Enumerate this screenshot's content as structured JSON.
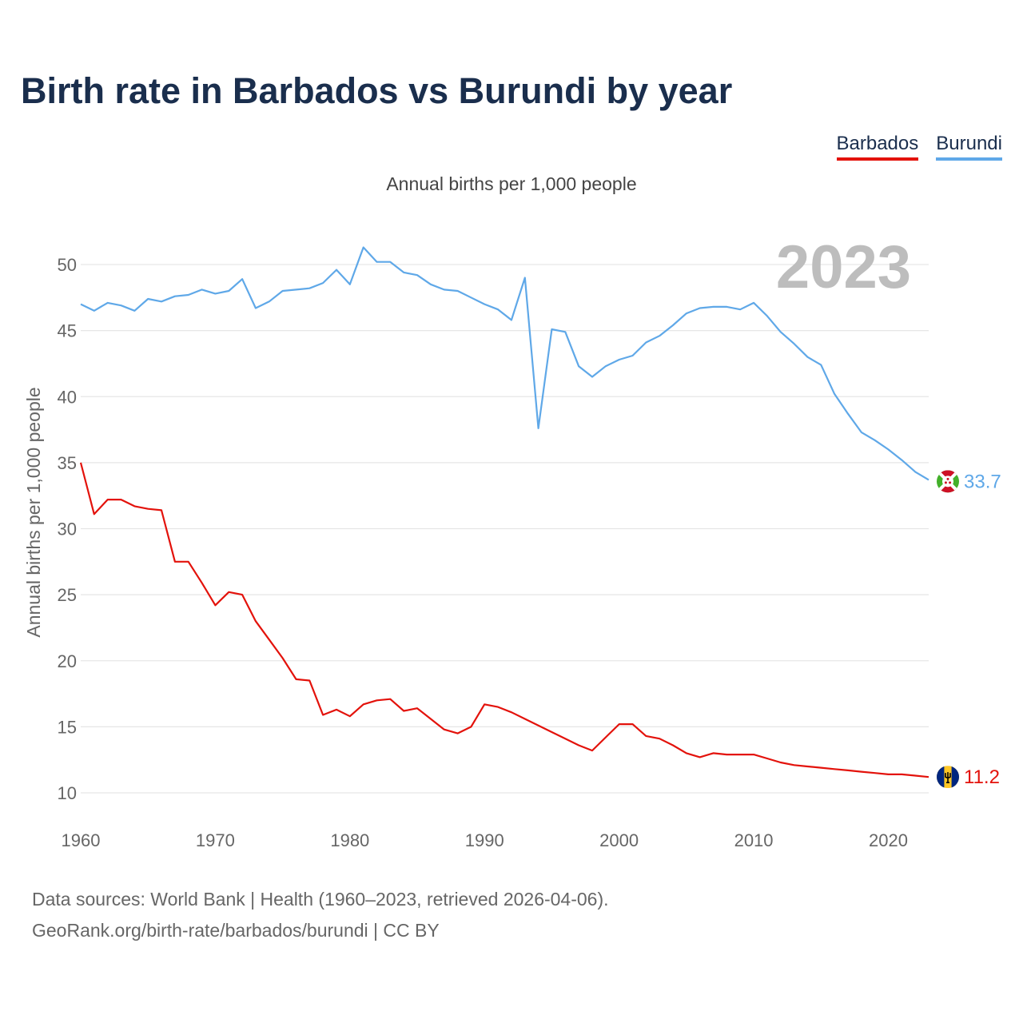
{
  "title": "Birth rate in Barbados vs Burundi by year",
  "subtitle": "Annual births per 1,000 people",
  "legend": {
    "barbados": "Barbados",
    "burundi": "Burundi"
  },
  "year_display": "2023",
  "footer": {
    "line1": "Data sources: World Bank | Health (1960–2023, retrieved 2026-04-06).",
    "line2": "GeoRank.org/birth-rate/barbados/burundi | CC BY"
  },
  "end_labels": {
    "barbados": "11.2",
    "burundi": "33.7"
  },
  "colors": {
    "barbados": "#e3120b",
    "burundi": "#5fa8e8",
    "title": "#1a2e4d",
    "grid": "#e6e6e6"
  },
  "chart_data": {
    "type": "line",
    "title": "Birth rate in Barbados vs Burundi by year",
    "xlabel": "",
    "ylabel": "Annual births per 1,000 people",
    "xlim": [
      1960,
      2023
    ],
    "ylim": [
      10,
      52
    ],
    "x_ticks": [
      1960,
      1970,
      1980,
      1990,
      2000,
      2010,
      2020
    ],
    "y_ticks": [
      10,
      15,
      20,
      25,
      30,
      35,
      40,
      45,
      50
    ],
    "grid": true,
    "legend_position": "top-right",
    "series": [
      {
        "name": "Barbados",
        "x": [
          1960,
          1961,
          1962,
          1963,
          1964,
          1965,
          1966,
          1967,
          1968,
          1969,
          1970,
          1971,
          1972,
          1973,
          1974,
          1975,
          1976,
          1977,
          1978,
          1979,
          1980,
          1981,
          1982,
          1983,
          1984,
          1985,
          1986,
          1987,
          1988,
          1989,
          1990,
          1991,
          1992,
          1993,
          1994,
          1995,
          1996,
          1997,
          1998,
          1999,
          2000,
          2001,
          2002,
          2003,
          2004,
          2005,
          2006,
          2007,
          2008,
          2009,
          2010,
          2011,
          2012,
          2013,
          2014,
          2015,
          2016,
          2017,
          2018,
          2019,
          2020,
          2021,
          2022,
          2023
        ],
        "values": [
          35.0,
          31.1,
          32.2,
          32.2,
          31.7,
          31.5,
          31.4,
          27.5,
          27.5,
          25.9,
          24.2,
          25.2,
          25.0,
          23.0,
          21.6,
          20.2,
          18.6,
          18.5,
          15.9,
          16.3,
          15.8,
          16.7,
          17.0,
          17.1,
          16.2,
          16.4,
          15.6,
          14.8,
          14.5,
          15.0,
          16.7,
          16.5,
          16.1,
          15.6,
          15.1,
          14.6,
          14.1,
          13.6,
          13.2,
          14.2,
          15.2,
          15.2,
          14.3,
          14.1,
          13.6,
          13.0,
          12.7,
          13.0,
          12.9,
          12.9,
          12.9,
          12.6,
          12.3,
          12.1,
          12.0,
          11.9,
          11.8,
          11.7,
          11.6,
          11.5,
          11.4,
          11.4,
          11.3,
          11.2
        ]
      },
      {
        "name": "Burundi",
        "x": [
          1960,
          1961,
          1962,
          1963,
          1964,
          1965,
          1966,
          1967,
          1968,
          1969,
          1970,
          1971,
          1972,
          1973,
          1974,
          1975,
          1976,
          1977,
          1978,
          1979,
          1980,
          1981,
          1982,
          1983,
          1984,
          1985,
          1986,
          1987,
          1988,
          1989,
          1990,
          1991,
          1992,
          1993,
          1994,
          1995,
          1996,
          1997,
          1998,
          1999,
          2000,
          2001,
          2002,
          2003,
          2004,
          2005,
          2006,
          2007,
          2008,
          2009,
          2010,
          2011,
          2012,
          2013,
          2014,
          2015,
          2016,
          2017,
          2018,
          2019,
          2020,
          2021,
          2022,
          2023
        ],
        "values": [
          47.0,
          46.5,
          47.1,
          46.9,
          46.5,
          47.4,
          47.2,
          47.6,
          47.7,
          48.1,
          47.8,
          48.0,
          48.9,
          46.7,
          47.2,
          48.0,
          48.1,
          48.2,
          48.6,
          49.6,
          48.5,
          51.3,
          50.2,
          50.2,
          49.4,
          49.2,
          48.5,
          48.1,
          48.0,
          47.5,
          47.0,
          46.6,
          45.8,
          49.0,
          37.6,
          45.1,
          44.9,
          42.3,
          41.5,
          42.3,
          42.8,
          43.1,
          44.1,
          44.6,
          45.4,
          46.3,
          46.7,
          46.8,
          46.8,
          46.6,
          47.1,
          46.1,
          44.9,
          44.0,
          43.0,
          42.4,
          40.2,
          38.7,
          37.3,
          36.7,
          36.0,
          35.2,
          34.3,
          33.7
        ]
      }
    ]
  }
}
